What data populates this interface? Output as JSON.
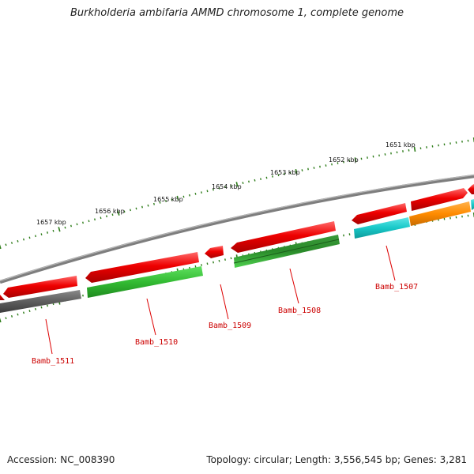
{
  "title": "Burkholderia ambifaria AMMD chromosome 1, complete genome",
  "footer": {
    "accession": "Accession: NC_008390",
    "summary": "Topology: circular; Length: 3,556,545 bp; Genes: 3,281"
  },
  "scale_labels": [
    "1657 kbp",
    "1656 kbp",
    "1655 kbp",
    "1654 kbp",
    "1653 kbp",
    "1652 kbp",
    "1651 kbp"
  ],
  "gene_labels": [
    "Bamb_1511",
    "Bamb_1510",
    "Bamb_1509",
    "Bamb_1508",
    "Bamb_1507"
  ],
  "colors": {
    "backbone": "#8a8a8a",
    "scale_ticks": "#2e7d1a",
    "label_text": "#cc0000",
    "leader_line": "#dd0000",
    "red_gene": "#e60000",
    "green_gene": "#33bb33",
    "dark_green_gene": "#2a8a2a",
    "gray_gene": "#666666",
    "cyan_gene": "#18c8c8",
    "orange_gene": "#ff8c00"
  }
}
